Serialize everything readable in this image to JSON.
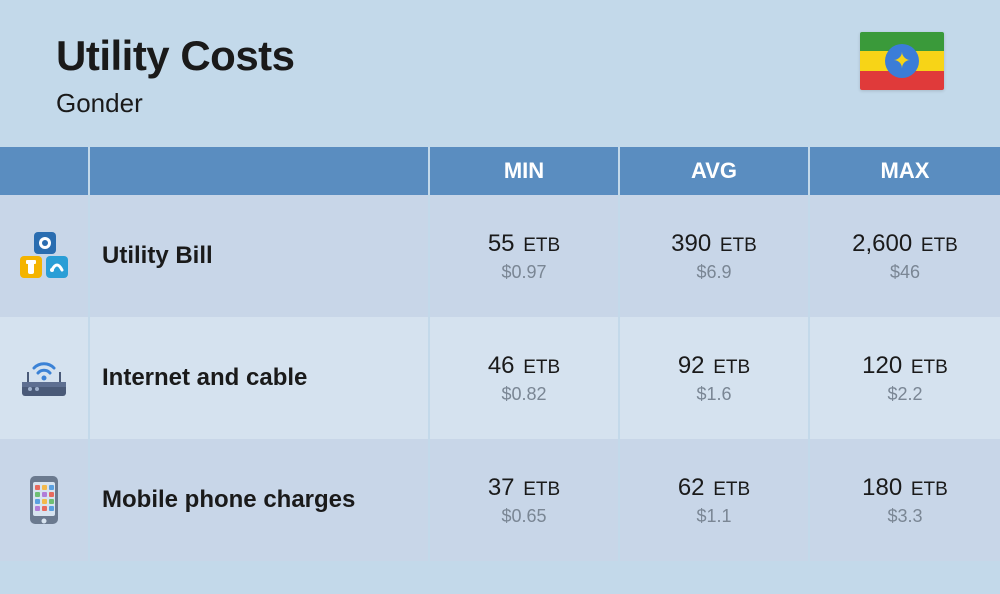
{
  "header": {
    "title": "Utility Costs",
    "subtitle": "Gonder"
  },
  "flag": {
    "stripes": [
      "#3a9a3a",
      "#f7d417",
      "#e03a3a"
    ],
    "disc": "#3b7dd8",
    "star": "#f7d417"
  },
  "table": {
    "columns": [
      "MIN",
      "AVG",
      "MAX"
    ],
    "currency_code": "ETB",
    "secondary_prefix": "$",
    "header_bg": "#5a8dc0",
    "header_fg": "#ffffff",
    "row_bg_alt": [
      "#c8d6e8",
      "#d5e2ef"
    ],
    "rows": [
      {
        "icon": "utility-icon",
        "label": "Utility Bill",
        "min": {
          "primary": "55",
          "secondary": "0.97"
        },
        "avg": {
          "primary": "390",
          "secondary": "6.9"
        },
        "max": {
          "primary": "2,600",
          "secondary": "46"
        }
      },
      {
        "icon": "router-icon",
        "label": "Internet and cable",
        "min": {
          "primary": "46",
          "secondary": "0.82"
        },
        "avg": {
          "primary": "92",
          "secondary": "1.6"
        },
        "max": {
          "primary": "120",
          "secondary": "2.2"
        }
      },
      {
        "icon": "phone-icon",
        "label": "Mobile phone charges",
        "min": {
          "primary": "37",
          "secondary": "0.65"
        },
        "avg": {
          "primary": "62",
          "secondary": "1.1"
        },
        "max": {
          "primary": "180",
          "secondary": "3.3"
        }
      }
    ]
  },
  "colors": {
    "page_bg": "#c3d9ea",
    "text": "#1a1a1a",
    "muted": "#7a8694"
  }
}
